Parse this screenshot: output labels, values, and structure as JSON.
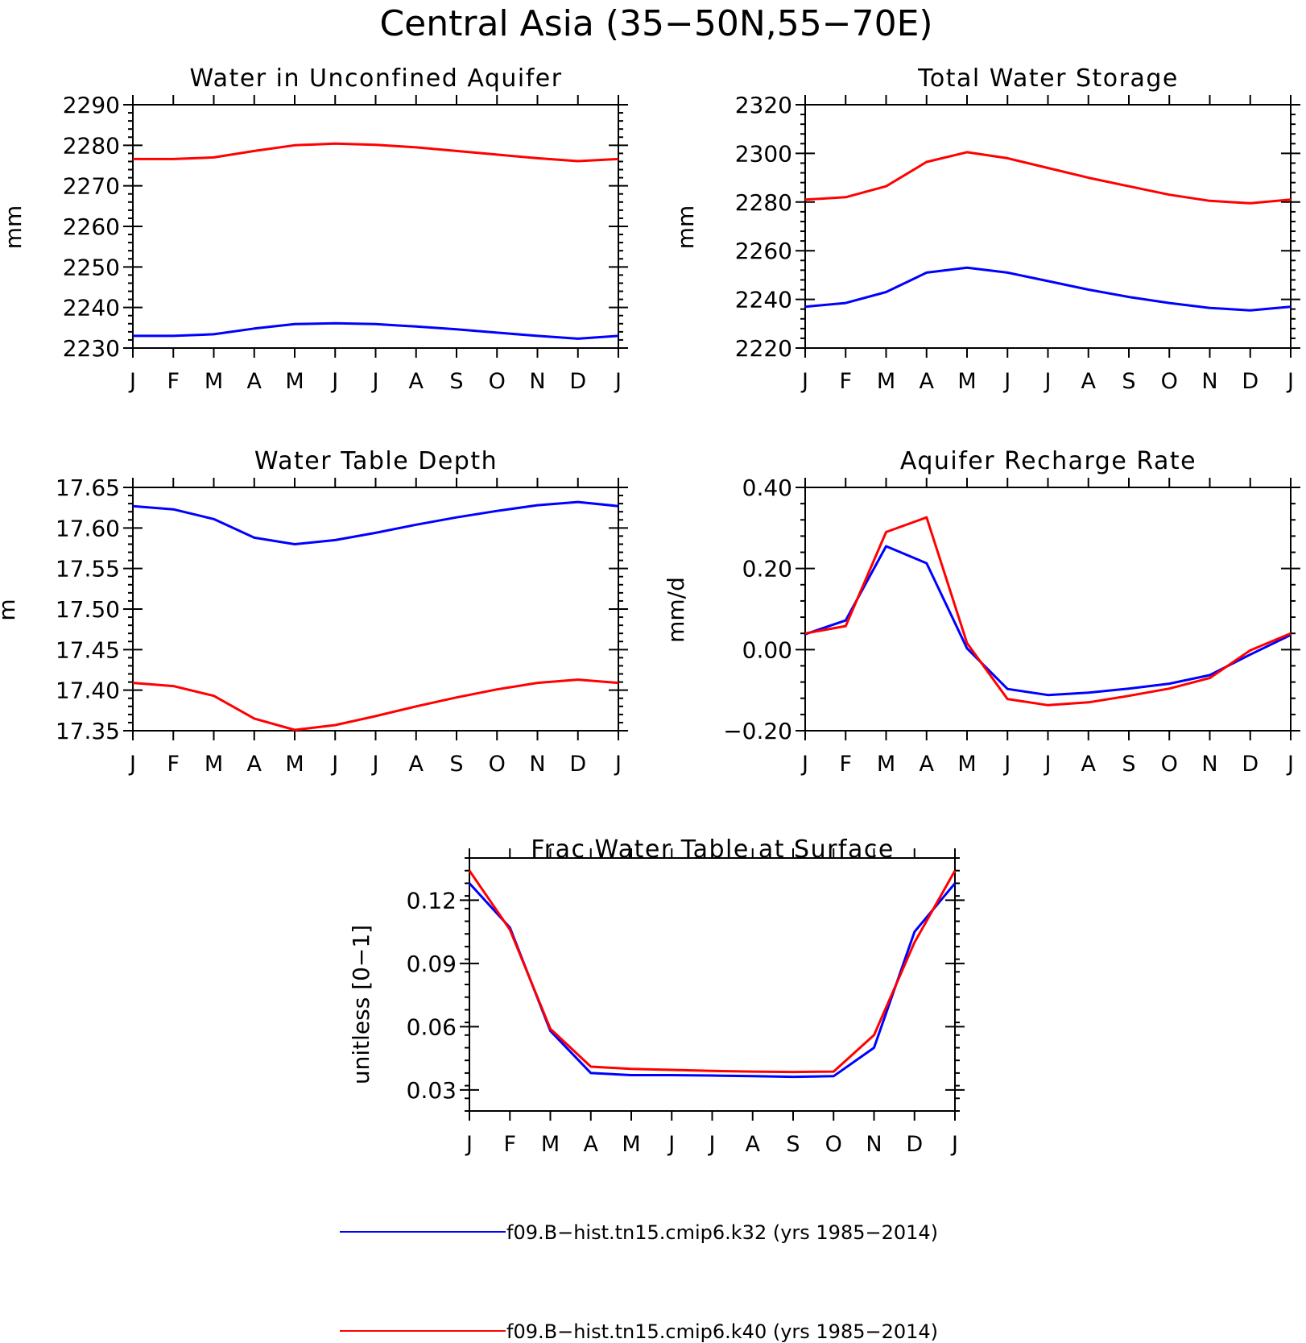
{
  "title": "Central Asia (35−50N,55−70E)",
  "colors": {
    "k32": "#0000ff",
    "k40": "#ff0000",
    "axis": "#000000"
  },
  "legend": [
    {
      "label": "f09.B−hist.tn15.cmip6.k32 (yrs 1985−2014)",
      "color": "#0000ff"
    },
    {
      "label": "f09.B−hist.tn15.cmip6.k40 (yrs 1985−2014)",
      "color": "#ff0000"
    }
  ],
  "chart_data": [
    {
      "type": "line",
      "title": "Water in Unconfined Aquifer",
      "ylabel": "mm",
      "x": [
        "J",
        "F",
        "M",
        "A",
        "M",
        "J",
        "J",
        "A",
        "S",
        "O",
        "N",
        "D",
        "J"
      ],
      "ylim": [
        2230,
        2290
      ],
      "yticks": [
        "2230",
        "2240",
        "2250",
        "2260",
        "2270",
        "2280",
        "2290"
      ],
      "series": [
        {
          "name": "f09.B−hist.tn15.cmip6.k32 (yrs 1985−2014)",
          "color": "#0000ff",
          "values": [
            2233.0,
            2233.0,
            2233.4,
            2234.8,
            2235.9,
            2236.1,
            2235.9,
            2235.3,
            2234.6,
            2233.8,
            2233.0,
            2232.3,
            2233.0
          ]
        },
        {
          "name": "f09.B−hist.tn15.cmip6.k40 (yrs 1985−2014)",
          "color": "#ff0000",
          "values": [
            2276.6,
            2276.6,
            2277.0,
            2278.6,
            2280.0,
            2280.4,
            2280.1,
            2279.5,
            2278.6,
            2277.7,
            2276.8,
            2276.1,
            2276.6
          ]
        }
      ]
    },
    {
      "type": "line",
      "title": "Total Water Storage",
      "ylabel": "mm",
      "x": [
        "J",
        "F",
        "M",
        "A",
        "M",
        "J",
        "J",
        "A",
        "S",
        "O",
        "N",
        "D",
        "J"
      ],
      "ylim": [
        2220,
        2320
      ],
      "yticks": [
        "2220",
        "2240",
        "2260",
        "2280",
        "2300",
        "2320"
      ],
      "series": [
        {
          "name": "f09.B−hist.tn15.cmip6.k32 (yrs 1985−2014)",
          "color": "#0000ff",
          "values": [
            2237.0,
            2238.5,
            2243.0,
            2251.0,
            2253.0,
            2251.0,
            2247.5,
            2244.0,
            2241.0,
            2238.5,
            2236.5,
            2235.5,
            2237.0
          ]
        },
        {
          "name": "f09.B−hist.tn15.cmip6.k40 (yrs 1985−2014)",
          "color": "#ff0000",
          "values": [
            2281.0,
            2282.0,
            2286.5,
            2296.5,
            2300.5,
            2298.0,
            2294.0,
            2290.0,
            2286.5,
            2283.0,
            2280.5,
            2279.5,
            2281.0
          ]
        }
      ]
    },
    {
      "type": "line",
      "title": "Water Table Depth",
      "ylabel": "m",
      "x": [
        "J",
        "F",
        "M",
        "A",
        "M",
        "J",
        "J",
        "A",
        "S",
        "O",
        "N",
        "D",
        "J"
      ],
      "ylim": [
        17.35,
        17.65
      ],
      "yticks": [
        "17.35",
        "17.40",
        "17.45",
        "17.50",
        "17.55",
        "17.60",
        "17.65"
      ],
      "series": [
        {
          "name": "f09.B−hist.tn15.cmip6.k32 (yrs 1985−2014)",
          "color": "#0000ff",
          "values": [
            17.627,
            17.623,
            17.611,
            17.588,
            17.58,
            17.585,
            17.594,
            17.604,
            17.613,
            17.621,
            17.628,
            17.632,
            17.627
          ]
        },
        {
          "name": "f09.B−hist.tn15.cmip6.k40 (yrs 1985−2014)",
          "color": "#ff0000",
          "values": [
            17.409,
            17.405,
            17.393,
            17.365,
            17.351,
            17.357,
            17.368,
            17.38,
            17.391,
            17.401,
            17.409,
            17.413,
            17.409
          ]
        }
      ]
    },
    {
      "type": "line",
      "title": "Aquifer Recharge Rate",
      "ylabel": "mm/d",
      "x": [
        "J",
        "F",
        "M",
        "A",
        "M",
        "J",
        "J",
        "A",
        "S",
        "O",
        "N",
        "D",
        "J"
      ],
      "ylim": [
        -0.2,
        0.4
      ],
      "yticks": [
        "−0.20",
        "0.00",
        "0.20",
        "0.40"
      ],
      "series": [
        {
          "name": "f09.B−hist.tn15.cmip6.k32 (yrs 1985−2014)",
          "color": "#0000ff",
          "values": [
            0.038,
            0.072,
            0.255,
            0.213,
            0.003,
            -0.097,
            -0.112,
            -0.106,
            -0.096,
            -0.084,
            -0.063,
            -0.012,
            0.036
          ]
        },
        {
          "name": "f09.B−hist.tn15.cmip6.k40 (yrs 1985−2014)",
          "color": "#ff0000",
          "values": [
            0.04,
            0.058,
            0.29,
            0.326,
            0.016,
            -0.122,
            -0.137,
            -0.13,
            -0.114,
            -0.096,
            -0.07,
            -0.002,
            0.04
          ]
        }
      ]
    },
    {
      "type": "line",
      "title": "Frac Water Table at Surface",
      "ylabel": "unitless [0−1]",
      "x": [
        "J",
        "F",
        "M",
        "A",
        "M",
        "J",
        "J",
        "A",
        "S",
        "O",
        "N",
        "D",
        "J"
      ],
      "ylim": [
        0.02,
        0.14
      ],
      "yticks": [
        "0.03",
        "0.06",
        "0.09",
        "0.12"
      ],
      "series": [
        {
          "name": "f09.B−hist.tn15.cmip6.k32 (yrs 1985−2014)",
          "color": "#0000ff",
          "values": [
            0.128,
            0.107,
            0.058,
            0.038,
            0.037,
            0.037,
            0.0368,
            0.0365,
            0.0362,
            0.0365,
            0.05,
            0.105,
            0.128
          ]
        },
        {
          "name": "f09.B−hist.tn15.cmip6.k40 (yrs 1985−2014)",
          "color": "#ff0000",
          "values": [
            0.134,
            0.106,
            0.059,
            0.041,
            0.04,
            0.0395,
            0.039,
            0.0387,
            0.0385,
            0.0387,
            0.056,
            0.1,
            0.134
          ]
        }
      ]
    }
  ]
}
